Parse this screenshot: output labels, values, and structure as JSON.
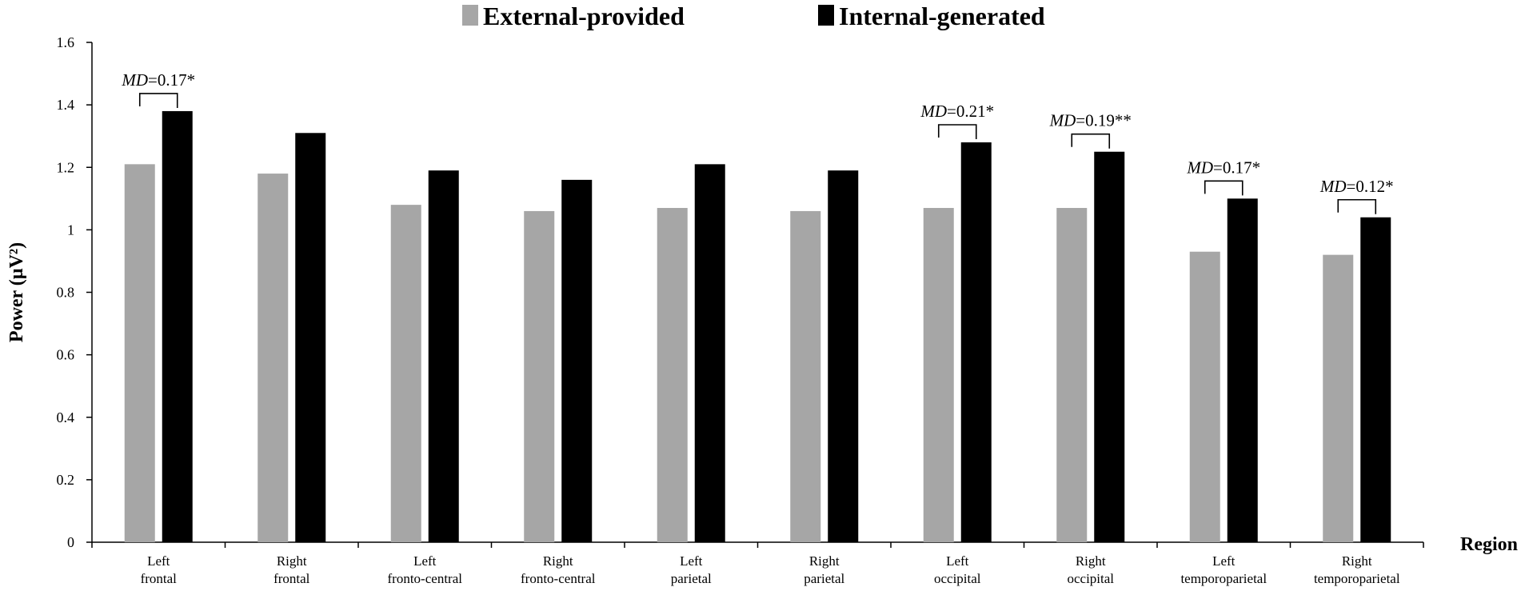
{
  "chart_data": {
    "type": "bar",
    "title": "",
    "xlabel": "Region",
    "ylabel": "Power (µV²)",
    "ylim": [
      0,
      1.6
    ],
    "yticks": [
      "0",
      "0.2",
      "0.4",
      "0.6",
      "0.8",
      "1",
      "1.2",
      "1.4",
      "1.6"
    ],
    "ytick_values": [
      0,
      0.2,
      0.4,
      0.6,
      0.8,
      1.0,
      1.2,
      1.4,
      1.6
    ],
    "grid": false,
    "legend_position": "top-center",
    "categories": [
      [
        "Left",
        "frontal"
      ],
      [
        "Right",
        "frontal"
      ],
      [
        "Left",
        "fronto-central"
      ],
      [
        "Right",
        "fronto-central"
      ],
      [
        "Left",
        "parietal"
      ],
      [
        "Right",
        "parietal"
      ],
      [
        "Left",
        "occipital"
      ],
      [
        "Right",
        "occipital"
      ],
      [
        "Left",
        "temporoparietal"
      ],
      [
        "Right",
        "temporoparietal"
      ]
    ],
    "series": [
      {
        "name": "External-provided",
        "color": "#a6a6a6",
        "values": [
          1.21,
          1.18,
          1.08,
          1.06,
          1.07,
          1.06,
          1.07,
          1.07,
          0.93,
          0.92
        ]
      },
      {
        "name": "Internal-generated",
        "color": "#000000",
        "values": [
          1.38,
          1.31,
          1.19,
          1.16,
          1.21,
          1.19,
          1.28,
          1.25,
          1.1,
          1.04
        ]
      }
    ],
    "annotations": [
      {
        "category_index": 0,
        "label": "MD",
        "text": "=0.17*"
      },
      {
        "category_index": 6,
        "label": "MD",
        "text": "=0.21*"
      },
      {
        "category_index": 7,
        "label": "MD",
        "text": "=0.19**"
      },
      {
        "category_index": 8,
        "label": "MD",
        "text": "=0.17*"
      },
      {
        "category_index": 9,
        "label": "MD",
        "text": "=0.12*"
      }
    ]
  }
}
